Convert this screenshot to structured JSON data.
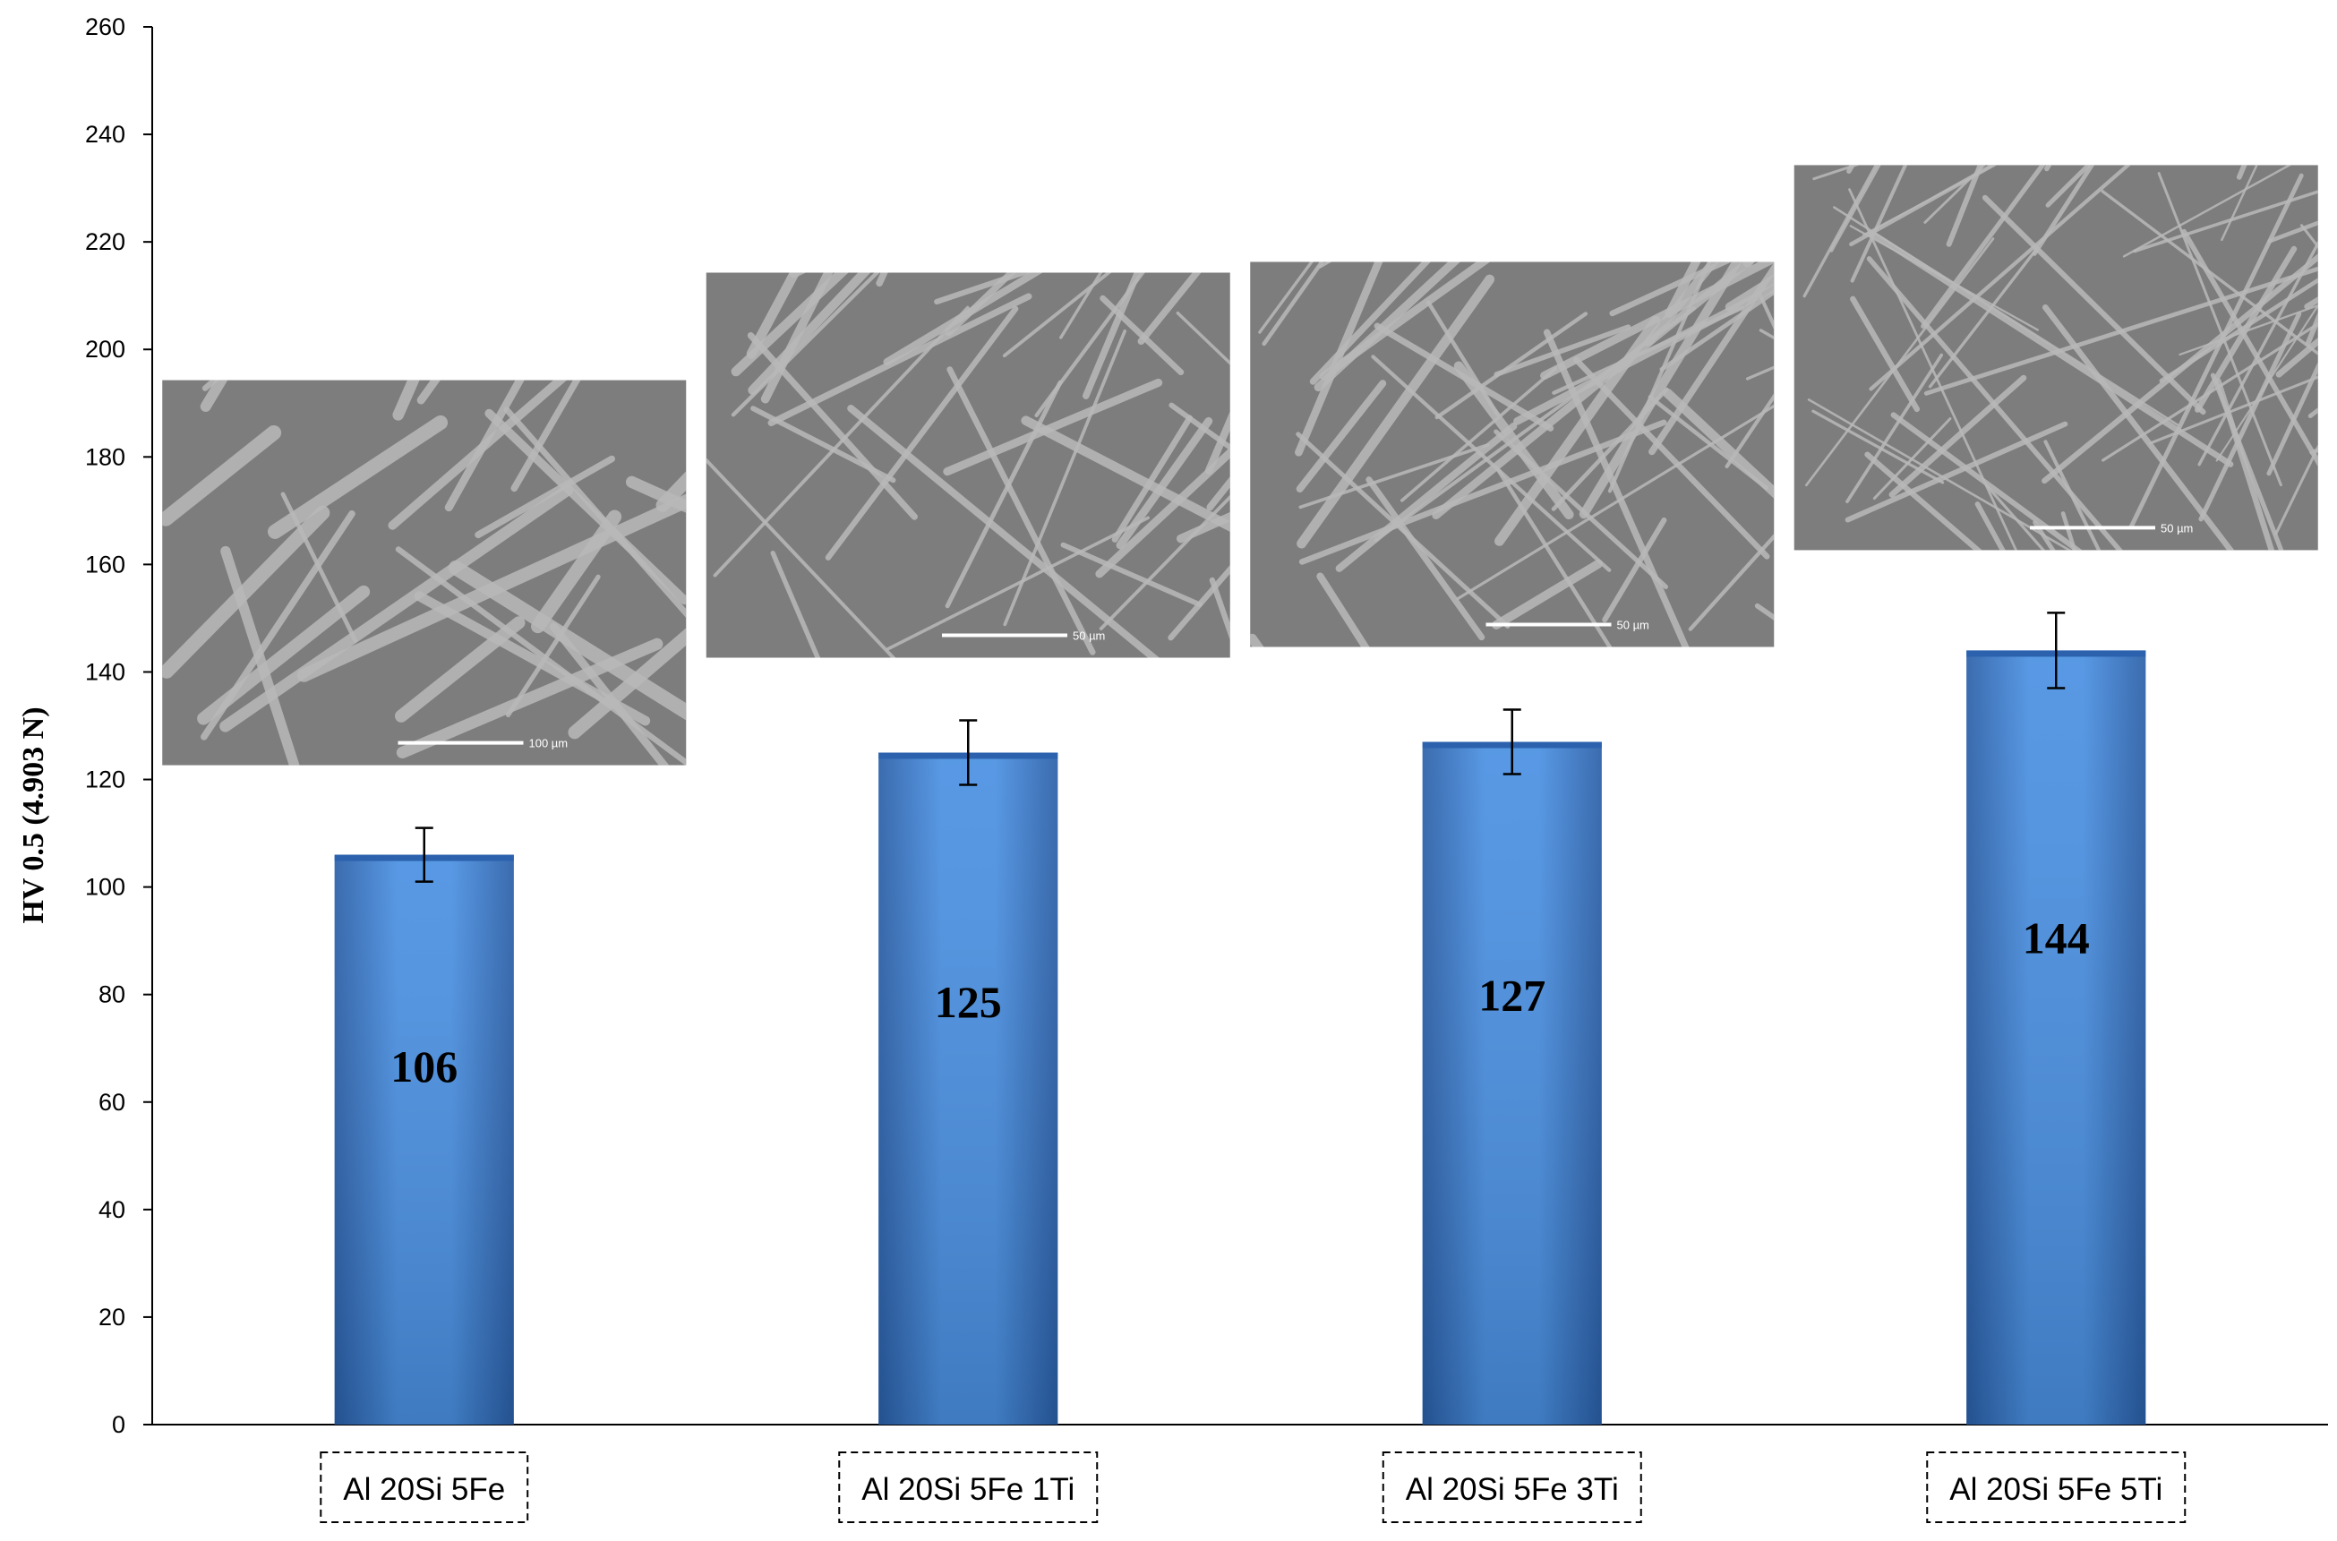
{
  "chart_data": {
    "type": "bar",
    "title": "",
    "xlabel": "",
    "ylabel": "HV 0.5 (4.903 N)",
    "ylim": [
      0,
      260
    ],
    "yticks": [
      0,
      20,
      40,
      60,
      80,
      100,
      120,
      140,
      160,
      180,
      200,
      220,
      240,
      260
    ],
    "grid": false,
    "categories": [
      "Al 20Si 5Fe",
      "Al 20Si 5Fe 1Ti",
      "Al 20Si 5Fe 3Ti",
      "Al 20Si 5Fe 5Ti"
    ],
    "values": [
      106,
      125,
      127,
      144
    ],
    "value_labels": [
      "106",
      "125",
      "127",
      "144"
    ],
    "error": [
      5,
      6,
      6,
      7
    ],
    "bar_color": "#3b7fd4",
    "inset_scale_labels": [
      "100 µm",
      "50 µm",
      "50 µm",
      "50 µm"
    ]
  }
}
